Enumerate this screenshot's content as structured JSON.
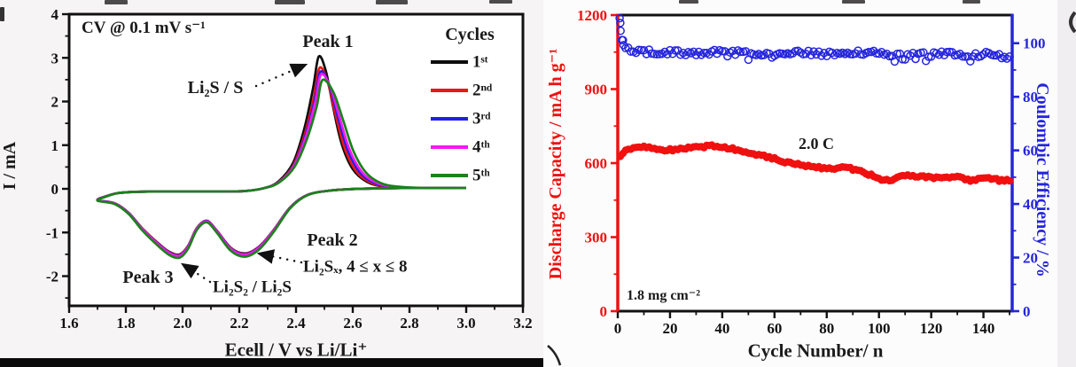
{
  "figure": {
    "background": "#fbfafa"
  },
  "chart_data": [
    {
      "id": "cv",
      "type": "line",
      "title": "CV @ 0.1 mV s⁻¹",
      "xlabel": "Ecell / V vs Li/Li⁺",
      "ylabel": "I / mA",
      "xlim": [
        1.6,
        3.2
      ],
      "ylim": [
        -2.68,
        4
      ],
      "x_ticks": [
        1.6,
        1.8,
        2.0,
        2.2,
        2.4,
        2.6,
        2.8,
        3.0,
        3.2
      ],
      "x_tick_labels": [
        "1.6",
        "1.8",
        "2.0",
        "2.2",
        "2.4",
        "2.6",
        "2.8",
        "3.0",
        "3.2"
      ],
      "x_minor_ticks": [
        1.7,
        1.9,
        2.1,
        2.3,
        2.5,
        2.7,
        2.9,
        3.1
      ],
      "y_ticks": [
        -2,
        -1,
        0,
        1,
        2,
        3,
        4
      ],
      "y_tick_labels": [
        "-2",
        "-1",
        "0",
        "1",
        "2",
        "3",
        "4"
      ],
      "y_minor_ticks": [
        -2.5,
        -1.5,
        -0.5,
        0.5,
        1.5,
        2.5,
        3.5
      ],
      "axis_color": "#111111",
      "annotations": {
        "scan_rate": "CV @ 0.1 mV s⁻¹",
        "peak1": "Peak 1",
        "peak1_species": "Li₂S / S",
        "peak2": "Peak 2",
        "peak2_species": "Li₂Sₓ, 4 ≤ x ≤ 8",
        "peak3": "Peak 3",
        "peak3_species": "Li₂S₂ / Li₂S"
      },
      "peaks": {
        "anodic_V": 2.48,
        "anodic_mA_by_cycle": [
          3.03,
          2.77,
          2.68,
          2.62,
          2.49
        ],
        "cathodic_peak2_V": 2.22,
        "cathodic_peak2_mA": -1.48,
        "cathodic_peak3_V": 1.99,
        "cathodic_peak3_mA": -1.5
      },
      "legend": {
        "title": "Cycles",
        "entries": [
          {
            "label": "1ˢᵗ",
            "color": "#0d0d0d"
          },
          {
            "label": "2ⁿᵈ",
            "color": "#ee1515"
          },
          {
            "label": "3ʳᵈ",
            "color": "#2020e0"
          },
          {
            "label": "4ᵗʰ",
            "color": "#f318f3"
          },
          {
            "label": "5ᵗʰ",
            "color": "#1a821a"
          }
        ]
      },
      "series": [
        {
          "name": "1st",
          "color": "#0d0d0d",
          "peak_scale": 1.0,
          "dip_scale": 1.0,
          "apex_shift": 0.0,
          "tail_widen": 0.0
        },
        {
          "name": "2nd",
          "color": "#ee1515",
          "peak_scale": 0.915,
          "dip_scale": 1.005,
          "apex_shift": 0.003,
          "tail_widen": 0.012
        },
        {
          "name": "3rd",
          "color": "#2020e0",
          "peak_scale": 0.885,
          "dip_scale": 1.012,
          "apex_shift": 0.006,
          "tail_widen": 0.024
        },
        {
          "name": "4th",
          "color": "#f318f3",
          "peak_scale": 0.865,
          "dip_scale": 1.02,
          "apex_shift": 0.008,
          "tail_widen": 0.034
        },
        {
          "name": "5th",
          "color": "#1a821a",
          "peak_scale": 0.822,
          "dip_scale": 1.05,
          "apex_shift": 0.013,
          "tail_widen": 0.05
        }
      ],
      "base_loop": {
        "cathodic": [
          [
            3.0,
            0.02
          ],
          [
            2.8,
            0.02
          ],
          [
            2.62,
            0.0
          ],
          [
            2.52,
            -0.04
          ],
          [
            2.44,
            -0.14
          ],
          [
            2.38,
            -0.42
          ],
          [
            2.32,
            -0.95
          ],
          [
            2.27,
            -1.32
          ],
          [
            2.22,
            -1.48
          ],
          [
            2.17,
            -1.35
          ],
          [
            2.12,
            -0.95
          ],
          [
            2.085,
            -0.73
          ],
          [
            2.05,
            -0.9
          ],
          [
            2.02,
            -1.3
          ],
          [
            1.99,
            -1.5
          ],
          [
            1.955,
            -1.45
          ],
          [
            1.92,
            -1.28
          ],
          [
            1.86,
            -0.92
          ],
          [
            1.81,
            -0.55
          ],
          [
            1.76,
            -0.33
          ],
          [
            1.7,
            -0.26
          ]
        ],
        "anodic": [
          [
            1.7,
            -0.26
          ],
          [
            1.73,
            -0.17
          ],
          [
            1.77,
            -0.1
          ],
          [
            1.83,
            -0.07
          ],
          [
            1.92,
            -0.06
          ],
          [
            2.02,
            -0.06
          ],
          [
            2.12,
            -0.06
          ],
          [
            2.22,
            -0.05
          ],
          [
            2.29,
            0.02
          ],
          [
            2.34,
            0.18
          ],
          [
            2.39,
            0.6
          ],
          [
            2.43,
            1.4
          ],
          [
            2.46,
            2.3
          ],
          [
            2.48,
            3.03
          ],
          [
            2.505,
            2.7
          ],
          [
            2.53,
            1.9
          ],
          [
            2.56,
            1.05
          ],
          [
            2.6,
            0.45
          ],
          [
            2.65,
            0.16
          ],
          [
            2.71,
            0.05
          ],
          [
            2.8,
            0.02
          ],
          [
            3.0,
            0.02
          ]
        ]
      }
    },
    {
      "id": "cycling",
      "type": "scatter",
      "xlabel": "Cycle Number/ n",
      "ylabel_left": "Discharge Capacity / mA h g⁻¹",
      "ylabel_right": "Coulombic Efficiency / %",
      "xlim": [
        0,
        151
      ],
      "ylim_left": [
        0,
        1200
      ],
      "ylim_right": [
        0,
        110.5
      ],
      "x_ticks": [
        0,
        20,
        40,
        60,
        80,
        100,
        120,
        140
      ],
      "x_tick_labels": [
        "0",
        "20",
        "40",
        "60",
        "80",
        "100",
        "120",
        "140"
      ],
      "x_minor_ticks": [
        10,
        30,
        50,
        70,
        90,
        110,
        130,
        150
      ],
      "y_ticks_left": [
        0,
        300,
        600,
        900,
        1200
      ],
      "y_tick_labels_left": [
        "0",
        "300",
        "600",
        "900",
        "1200"
      ],
      "y_minor_ticks_left": [
        150,
        450,
        750,
        1050
      ],
      "y_ticks_right": [
        0,
        20,
        40,
        60,
        80,
        100
      ],
      "y_tick_labels_right": [
        "0",
        "20",
        "40",
        "60",
        "80",
        "100"
      ],
      "y_minor_ticks_right": [
        10,
        30,
        50,
        70,
        90
      ],
      "axis_color_left": "#ee1111",
      "axis_color_right": "#2525dd",
      "frame_color": "#111111",
      "annotations": {
        "rate": "2.0 C",
        "loading": "1.8 mg cm⁻²"
      },
      "series": [
        {
          "name": "Discharge Capacity",
          "color": "#f01010",
          "marker": "filled-circle",
          "n_points": 150,
          "noise": 5,
          "keypoints": [
            [
              1,
              622
            ],
            [
              2,
              642
            ],
            [
              4,
              656
            ],
            [
              7,
              664
            ],
            [
              10,
              667
            ],
            [
              14,
              660
            ],
            [
              18,
              652
            ],
            [
              22,
              655
            ],
            [
              26,
              661
            ],
            [
              30,
              664
            ],
            [
              34,
              668
            ],
            [
              38,
              669
            ],
            [
              42,
              662
            ],
            [
              46,
              654
            ],
            [
              50,
              645
            ],
            [
              54,
              634
            ],
            [
              58,
              624
            ],
            [
              62,
              611
            ],
            [
              66,
              599
            ],
            [
              70,
              593
            ],
            [
              74,
              588
            ],
            [
              78,
              582
            ],
            [
              82,
              578
            ],
            [
              86,
              583
            ],
            [
              90,
              576
            ],
            [
              94,
              565
            ],
            [
              98,
              546
            ],
            [
              101,
              533
            ],
            [
              104,
              531
            ],
            [
              108,
              545
            ],
            [
              112,
              549
            ],
            [
              116,
              545
            ],
            [
              120,
              542
            ],
            [
              124,
              540
            ],
            [
              128,
              546
            ],
            [
              132,
              538
            ],
            [
              135,
              531
            ],
            [
              138,
              533
            ],
            [
              141,
              538
            ],
            [
              144,
              534
            ],
            [
              147,
              529
            ],
            [
              150,
              532
            ]
          ]
        },
        {
          "name": "Coulombic Efficiency",
          "color": "#2525dd",
          "marker": "open-circle",
          "n_points": 150,
          "noise": 0.9,
          "keypoints": [
            [
              1,
              107
            ],
            [
              2,
              101
            ],
            [
              3,
              98.6
            ],
            [
              5,
              97.4
            ],
            [
              10,
              96.8
            ],
            [
              20,
              96.6
            ],
            [
              30,
              96.4
            ],
            [
              40,
              96.8
            ],
            [
              50,
              96.2
            ],
            [
              60,
              95.4
            ],
            [
              70,
              96.4
            ],
            [
              80,
              96.0
            ],
            [
              90,
              96.6
            ],
            [
              100,
              96.2
            ],
            [
              105,
              94.8
            ],
            [
              110,
              96.2
            ],
            [
              118,
              95.6
            ],
            [
              126,
              96.2
            ],
            [
              134,
              95.2
            ],
            [
              142,
              96.0
            ],
            [
              150,
              94.8
            ]
          ],
          "extra_points": [
            [
              0.7,
              109.3
            ],
            [
              1.1,
              104.6
            ],
            [
              1.6,
              101.2
            ],
            [
              2.2,
              99.3
            ]
          ]
        }
      ]
    }
  ]
}
